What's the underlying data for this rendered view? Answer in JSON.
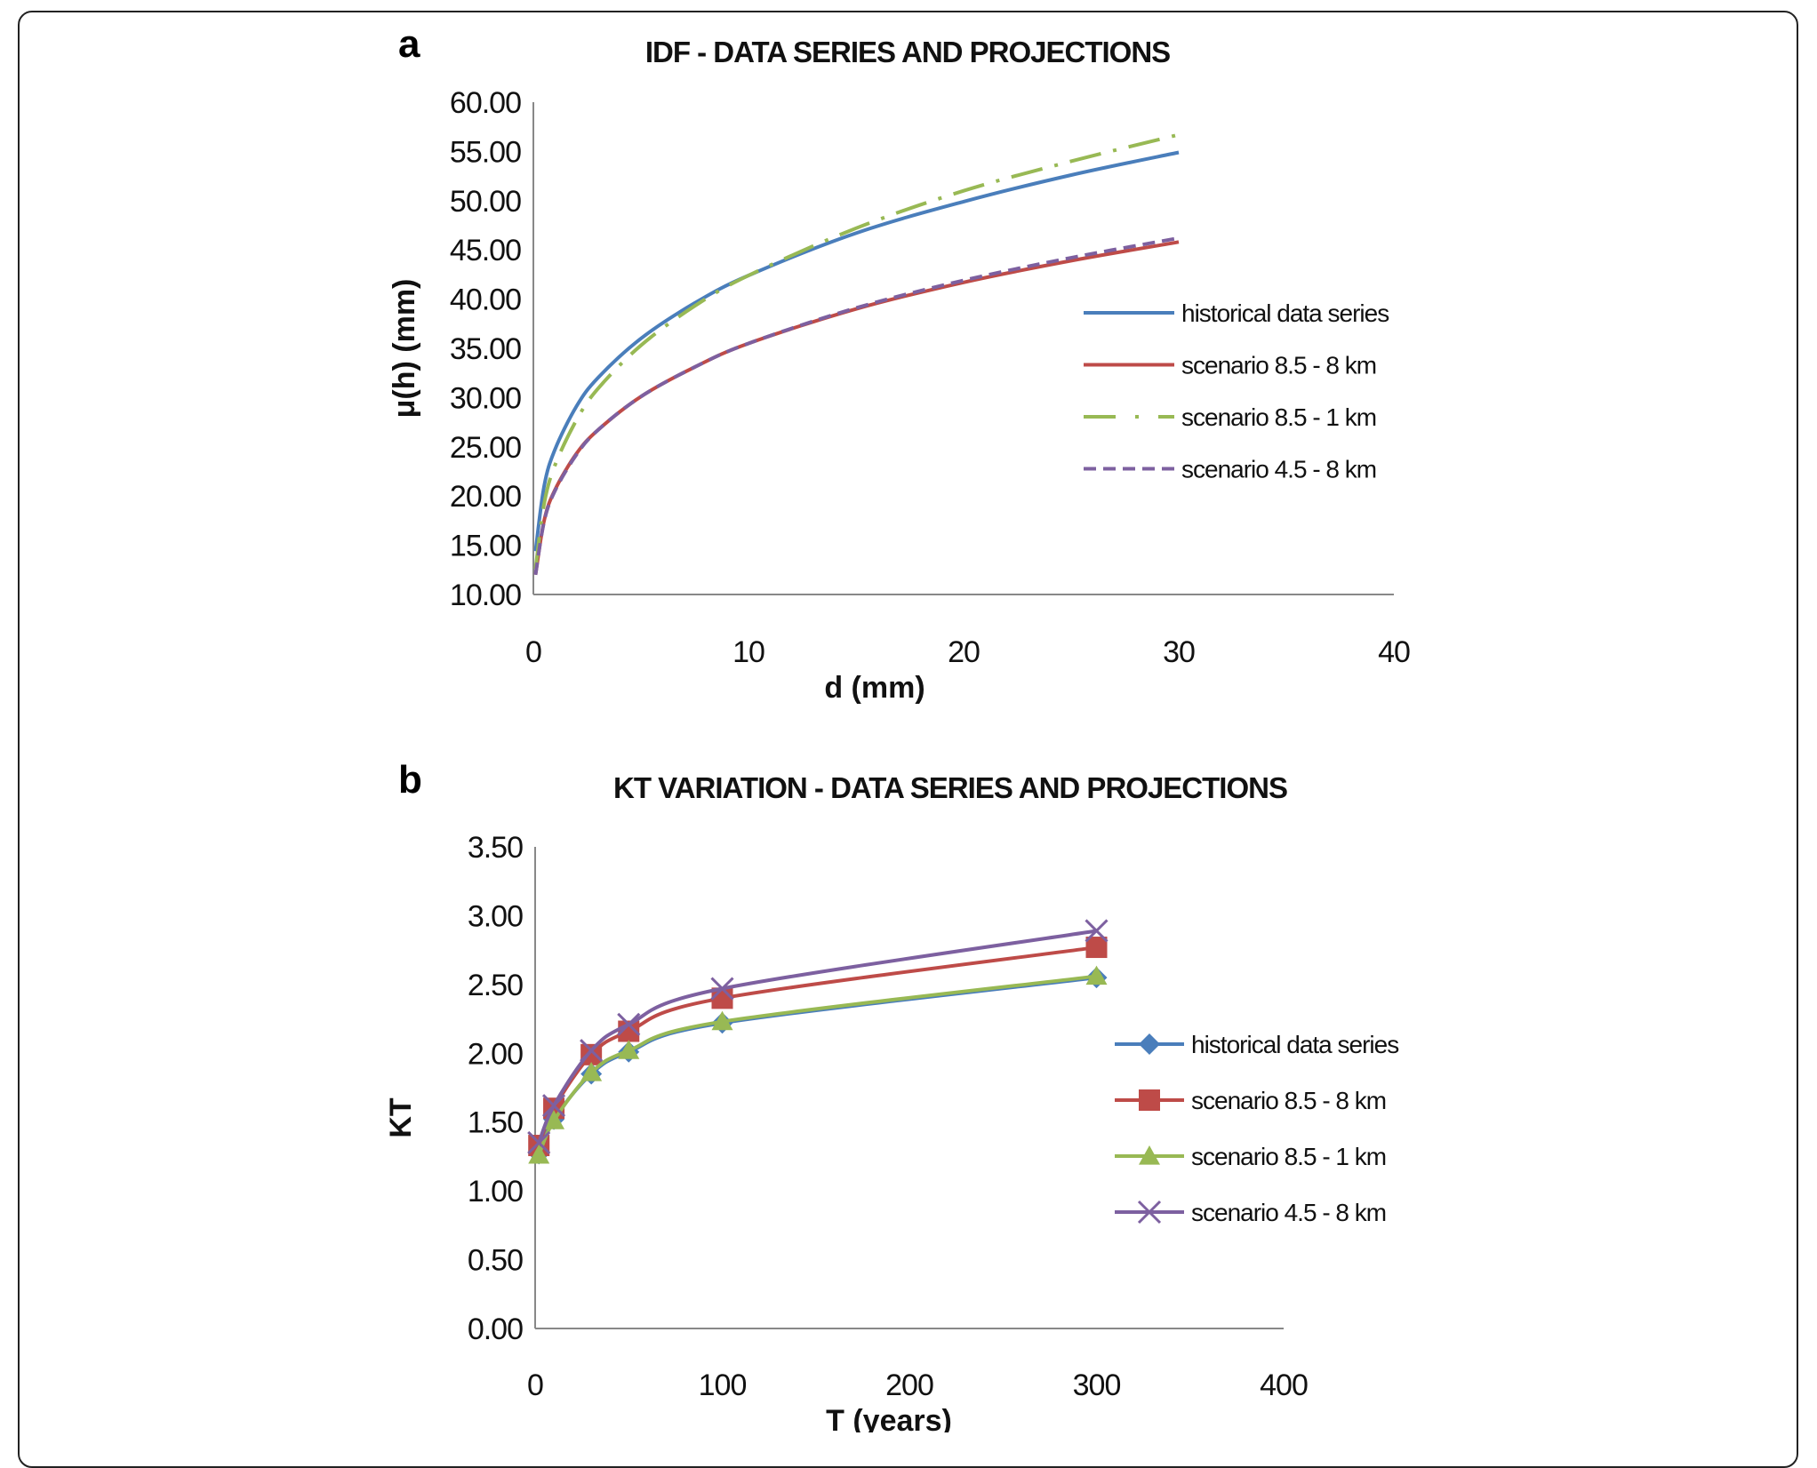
{
  "chart_data": [
    {
      "panel": "a",
      "type": "line",
      "title": "IDF - DATA SERIES AND PROJECTIONS",
      "xlabel": "d (mm)",
      "ylabel": "μ(h)  (mm)",
      "xlim": [
        0,
        40
      ],
      "ylim": [
        10,
        60
      ],
      "xticks": [
        "0",
        "10",
        "20",
        "30",
        "40"
      ],
      "yticks": [
        "10.00",
        "15.00",
        "20.00",
        "25.00",
        "30.00",
        "35.00",
        "40.00",
        "45.00",
        "50.00",
        "55.00",
        "60.00"
      ],
      "grid": false,
      "legend": "right",
      "x": [
        0.1,
        0.5,
        1,
        2,
        3,
        5,
        7.5,
        10,
        15,
        20,
        25,
        30
      ],
      "series": [
        {
          "name": "historical data series",
          "color": "#4a7ebb",
          "style": "solid",
          "values": [
            14.4,
            21.0,
            24.7,
            29.1,
            32.0,
            36.0,
            39.6,
            42.4,
            46.7,
            49.9,
            52.6,
            54.9
          ]
        },
        {
          "name": "scenario 8.5 - 8 km",
          "color": "#be4b48",
          "style": "solid",
          "values": [
            12.0,
            17.5,
            20.6,
            24.3,
            26.7,
            30.1,
            33.1,
            35.5,
            39.0,
            41.7,
            43.9,
            45.8
          ]
        },
        {
          "name": "scenario 8.5 - 1 km",
          "color": "#98b954",
          "style": "dashdot",
          "values": [
            12.6,
            19.2,
            23.1,
            27.7,
            30.9,
            35.3,
            39.3,
            42.4,
            47.2,
            51.0,
            54.0,
            56.7
          ]
        },
        {
          "name": "scenario 4.5 - 8 km",
          "color": "#7d60a0",
          "style": "dashed",
          "values": [
            12.0,
            17.4,
            20.5,
            24.2,
            26.7,
            30.1,
            33.1,
            35.5,
            39.1,
            41.9,
            44.2,
            46.2
          ]
        }
      ]
    },
    {
      "panel": "b",
      "type": "line",
      "title": "KT VARIATION - DATA SERIES AND PROJECTIONS",
      "xlabel": "T  (years)",
      "ylabel": "KT",
      "xlim": [
        0,
        400
      ],
      "ylim": [
        0,
        3.5
      ],
      "xticks": [
        "0",
        "100",
        "200",
        "300",
        "400"
      ],
      "yticks": [
        "0.00",
        "0.50",
        "1.00",
        "1.50",
        "2.00",
        "2.50",
        "3.00",
        "3.50"
      ],
      "grid": false,
      "legend": "right",
      "x": [
        2,
        10,
        30,
        50,
        100,
        300
      ],
      "series": [
        {
          "name": "historical data series",
          "color": "#4a7ebb",
          "marker": "diamond",
          "values": [
            1.27,
            1.52,
            1.85,
            2.01,
            2.22,
            2.55
          ]
        },
        {
          "name": "scenario 8.5 - 8 km",
          "color": "#be4b48",
          "marker": "square",
          "values": [
            1.33,
            1.6,
            1.99,
            2.16,
            2.4,
            2.77
          ]
        },
        {
          "name": "scenario 8.5 - 1 km",
          "color": "#98b954",
          "marker": "triangle",
          "values": [
            1.26,
            1.51,
            1.86,
            2.02,
            2.23,
            2.56
          ]
        },
        {
          "name": "scenario 4.5 - 8 km",
          "color": "#7d60a0",
          "marker": "x",
          "values": [
            1.35,
            1.62,
            2.02,
            2.21,
            2.47,
            2.89
          ]
        }
      ]
    }
  ]
}
